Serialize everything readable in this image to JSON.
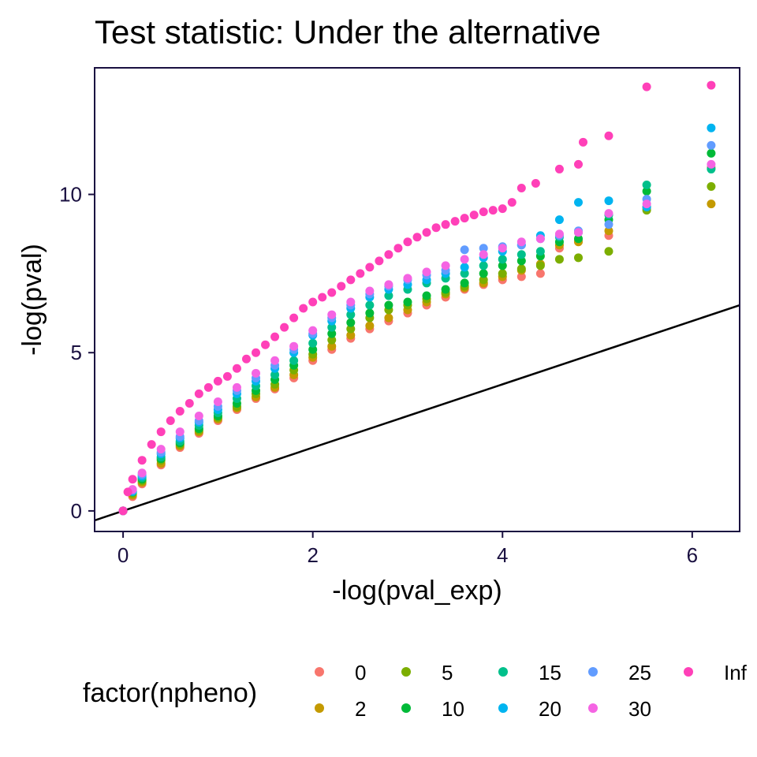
{
  "chart_data": {
    "type": "scatter",
    "title": "Test statistic: Under the alternative",
    "xlabel": "-log(pval_exp)",
    "ylabel": "-log(pval)",
    "xlim": [
      -0.3,
      6.5
    ],
    "ylim": [
      -0.65,
      14.0
    ],
    "xticks": [
      0,
      2,
      4,
      6
    ],
    "yticks": [
      0,
      5,
      10
    ],
    "grid": false,
    "legend": {
      "title": "factor(npheno)",
      "position": "bottom"
    },
    "reference_line": {
      "type": "identity",
      "slope": 1,
      "intercept": 0
    },
    "series": [
      {
        "name": "0",
        "color": "#F8766D",
        "points": [
          [
            0,
            0
          ],
          [
            0.1,
            0.45
          ],
          [
            0.2,
            0.85
          ],
          [
            0.4,
            1.45
          ],
          [
            0.6,
            2.0
          ],
          [
            0.8,
            2.45
          ],
          [
            1.0,
            2.85
          ],
          [
            1.2,
            3.2
          ],
          [
            1.4,
            3.55
          ],
          [
            1.6,
            3.85
          ],
          [
            1.8,
            4.2
          ],
          [
            2.0,
            4.75
          ],
          [
            2.2,
            5.1
          ],
          [
            2.4,
            5.45
          ],
          [
            2.6,
            5.75
          ],
          [
            2.8,
            6.0
          ],
          [
            3.0,
            6.25
          ],
          [
            3.2,
            6.5
          ],
          [
            3.4,
            6.75
          ],
          [
            3.6,
            7.0
          ],
          [
            3.8,
            7.15
          ],
          [
            4.0,
            7.3
          ],
          [
            4.2,
            7.4
          ],
          [
            4.4,
            7.5
          ],
          [
            4.6,
            8.3
          ],
          [
            4.8,
            8.55
          ],
          [
            5.12,
            8.7
          ],
          [
            5.52,
            9.55
          ],
          [
            6.2,
            10.85
          ]
        ]
      },
      {
        "name": "2",
        "color": "#C49A00",
        "points": [
          [
            0,
            0
          ],
          [
            0.1,
            0.5
          ],
          [
            0.2,
            0.9
          ],
          [
            0.4,
            1.5
          ],
          [
            0.6,
            2.05
          ],
          [
            0.8,
            2.5
          ],
          [
            1.0,
            2.9
          ],
          [
            1.2,
            3.25
          ],
          [
            1.4,
            3.6
          ],
          [
            1.6,
            3.9
          ],
          [
            1.8,
            4.3
          ],
          [
            2.0,
            4.85
          ],
          [
            2.2,
            5.2
          ],
          [
            2.4,
            5.55
          ],
          [
            2.6,
            5.85
          ],
          [
            2.8,
            6.1
          ],
          [
            3.0,
            6.35
          ],
          [
            3.2,
            6.6
          ],
          [
            3.4,
            6.85
          ],
          [
            3.6,
            7.05
          ],
          [
            3.8,
            7.2
          ],
          [
            4.0,
            7.4
          ],
          [
            4.2,
            7.6
          ],
          [
            4.4,
            7.8
          ],
          [
            4.6,
            8.4
          ],
          [
            4.8,
            8.5
          ],
          [
            5.12,
            8.85
          ],
          [
            5.52,
            9.6
          ],
          [
            6.2,
            9.7
          ]
        ]
      },
      {
        "name": "5",
        "color": "#7CAE00",
        "points": [
          [
            0,
            0
          ],
          [
            0.1,
            0.55
          ],
          [
            0.2,
            0.95
          ],
          [
            0.4,
            1.6
          ],
          [
            0.6,
            2.1
          ],
          [
            0.8,
            2.55
          ],
          [
            1.0,
            2.95
          ],
          [
            1.2,
            3.3
          ],
          [
            1.4,
            3.7
          ],
          [
            1.6,
            4.0
          ],
          [
            1.8,
            4.45
          ],
          [
            2.0,
            4.95
          ],
          [
            2.2,
            5.4
          ],
          [
            2.4,
            5.75
          ],
          [
            2.6,
            6.1
          ],
          [
            2.8,
            6.35
          ],
          [
            3.0,
            6.5
          ],
          [
            3.2,
            6.7
          ],
          [
            3.4,
            6.9
          ],
          [
            3.6,
            7.1
          ],
          [
            3.8,
            7.3
          ],
          [
            4.0,
            7.5
          ],
          [
            4.2,
            7.65
          ],
          [
            4.4,
            7.75
          ],
          [
            4.6,
            7.95
          ],
          [
            4.8,
            8.0
          ],
          [
            5.12,
            8.2
          ],
          [
            5.52,
            9.5
          ],
          [
            6.2,
            10.25
          ]
        ]
      },
      {
        "name": "10",
        "color": "#00BA38",
        "points": [
          [
            0,
            0
          ],
          [
            0.1,
            0.6
          ],
          [
            0.2,
            1.0
          ],
          [
            0.4,
            1.65
          ],
          [
            0.6,
            2.15
          ],
          [
            0.8,
            2.6
          ],
          [
            1.0,
            3.0
          ],
          [
            1.2,
            3.4
          ],
          [
            1.4,
            3.8
          ],
          [
            1.6,
            4.15
          ],
          [
            1.8,
            4.6
          ],
          [
            2.0,
            5.1
          ],
          [
            2.2,
            5.6
          ],
          [
            2.4,
            5.95
          ],
          [
            2.6,
            6.25
          ],
          [
            2.8,
            6.5
          ],
          [
            3.0,
            6.6
          ],
          [
            3.2,
            6.8
          ],
          [
            3.4,
            7.0
          ],
          [
            3.6,
            7.2
          ],
          [
            3.8,
            7.5
          ],
          [
            4.0,
            7.75
          ],
          [
            4.2,
            7.9
          ],
          [
            4.4,
            8.05
          ],
          [
            4.6,
            8.5
          ],
          [
            4.8,
            8.6
          ],
          [
            5.12,
            9.2
          ],
          [
            5.52,
            10.1
          ],
          [
            6.2,
            11.3
          ]
        ]
      },
      {
        "name": "15",
        "color": "#00C08B",
        "points": [
          [
            0,
            0
          ],
          [
            0.1,
            0.6
          ],
          [
            0.2,
            1.05
          ],
          [
            0.4,
            1.7
          ],
          [
            0.6,
            2.2
          ],
          [
            0.8,
            2.7
          ],
          [
            1.0,
            3.1
          ],
          [
            1.2,
            3.55
          ],
          [
            1.4,
            3.95
          ],
          [
            1.6,
            4.3
          ],
          [
            1.8,
            4.75
          ],
          [
            2.0,
            5.3
          ],
          [
            2.2,
            5.8
          ],
          [
            2.4,
            6.2
          ],
          [
            2.6,
            6.5
          ],
          [
            2.8,
            6.8
          ],
          [
            3.0,
            7.0
          ],
          [
            3.2,
            7.2
          ],
          [
            3.4,
            7.35
          ],
          [
            3.6,
            7.5
          ],
          [
            3.8,
            7.75
          ],
          [
            4.0,
            7.95
          ],
          [
            4.2,
            8.1
          ],
          [
            4.4,
            8.2
          ],
          [
            4.6,
            8.65
          ],
          [
            4.8,
            8.8
          ],
          [
            5.12,
            9.35
          ],
          [
            5.52,
            10.3
          ],
          [
            6.2,
            10.8
          ]
        ]
      },
      {
        "name": "20",
        "color": "#00B4F0",
        "points": [
          [
            0,
            0
          ],
          [
            0.1,
            0.62
          ],
          [
            0.2,
            1.1
          ],
          [
            0.4,
            1.8
          ],
          [
            0.6,
            2.3
          ],
          [
            0.8,
            2.8
          ],
          [
            1.0,
            3.2
          ],
          [
            1.2,
            3.7
          ],
          [
            1.4,
            4.1
          ],
          [
            1.6,
            4.5
          ],
          [
            1.8,
            5.0
          ],
          [
            2.0,
            5.55
          ],
          [
            2.2,
            6.0
          ],
          [
            2.4,
            6.4
          ],
          [
            2.6,
            6.75
          ],
          [
            2.8,
            7.0
          ],
          [
            3.0,
            7.15
          ],
          [
            3.2,
            7.3
          ],
          [
            3.4,
            7.5
          ],
          [
            3.6,
            7.7
          ],
          [
            3.8,
            8.0
          ],
          [
            4.0,
            8.2
          ],
          [
            4.2,
            8.4
          ],
          [
            4.4,
            8.7
          ],
          [
            4.6,
            9.2
          ],
          [
            4.8,
            9.75
          ],
          [
            5.12,
            9.8
          ],
          [
            5.52,
            9.6
          ],
          [
            6.2,
            12.1
          ]
        ]
      },
      {
        "name": "25",
        "color": "#619CFF",
        "points": [
          [
            0,
            0
          ],
          [
            0.1,
            0.65
          ],
          [
            0.2,
            1.15
          ],
          [
            0.4,
            1.85
          ],
          [
            0.6,
            2.35
          ],
          [
            0.8,
            2.85
          ],
          [
            1.0,
            3.3
          ],
          [
            1.2,
            3.8
          ],
          [
            1.4,
            4.2
          ],
          [
            1.6,
            4.6
          ],
          [
            1.8,
            5.1
          ],
          [
            2.0,
            5.6
          ],
          [
            2.2,
            6.1
          ],
          [
            2.4,
            6.5
          ],
          [
            2.6,
            6.85
          ],
          [
            2.8,
            7.1
          ],
          [
            3.0,
            7.3
          ],
          [
            3.2,
            7.45
          ],
          [
            3.4,
            7.6
          ],
          [
            3.6,
            8.25
          ],
          [
            3.8,
            8.3
          ],
          [
            4.0,
            8.35
          ],
          [
            4.2,
            8.4
          ],
          [
            4.4,
            8.6
          ],
          [
            4.6,
            8.7
          ],
          [
            4.8,
            8.85
          ],
          [
            5.12,
            9.05
          ],
          [
            5.52,
            9.85
          ],
          [
            6.2,
            11.55
          ]
        ]
      },
      {
        "name": "30",
        "color": "#F564E3",
        "points": [
          [
            0,
            0
          ],
          [
            0.1,
            0.68
          ],
          [
            0.2,
            1.2
          ],
          [
            0.4,
            1.95
          ],
          [
            0.6,
            2.5
          ],
          [
            0.8,
            3.0
          ],
          [
            1.0,
            3.45
          ],
          [
            1.2,
            3.9
          ],
          [
            1.4,
            4.35
          ],
          [
            1.6,
            4.75
          ],
          [
            1.8,
            5.2
          ],
          [
            2.0,
            5.7
          ],
          [
            2.2,
            6.2
          ],
          [
            2.4,
            6.6
          ],
          [
            2.6,
            6.95
          ],
          [
            2.8,
            7.15
          ],
          [
            3.0,
            7.35
          ],
          [
            3.2,
            7.55
          ],
          [
            3.4,
            7.75
          ],
          [
            3.6,
            7.95
          ],
          [
            3.8,
            8.1
          ],
          [
            4.0,
            8.3
          ],
          [
            4.2,
            8.5
          ],
          [
            4.4,
            8.6
          ],
          [
            4.6,
            8.75
          ],
          [
            4.8,
            8.8
          ],
          [
            5.12,
            9.4
          ],
          [
            5.52,
            9.7
          ],
          [
            6.2,
            10.95
          ]
        ]
      },
      {
        "name": "Inf",
        "color": "#FF40B8",
        "points": [
          [
            0,
            0
          ],
          [
            0.05,
            0.6
          ],
          [
            0.1,
            1.0
          ],
          [
            0.2,
            1.6
          ],
          [
            0.3,
            2.1
          ],
          [
            0.4,
            2.5
          ],
          [
            0.5,
            2.85
          ],
          [
            0.6,
            3.15
          ],
          [
            0.7,
            3.4
          ],
          [
            0.8,
            3.7
          ],
          [
            0.9,
            3.9
          ],
          [
            1.0,
            4.1
          ],
          [
            1.1,
            4.25
          ],
          [
            1.2,
            4.5
          ],
          [
            1.3,
            4.8
          ],
          [
            1.4,
            5.0
          ],
          [
            1.5,
            5.25
          ],
          [
            1.6,
            5.5
          ],
          [
            1.7,
            5.8
          ],
          [
            1.8,
            6.1
          ],
          [
            1.9,
            6.4
          ],
          [
            2.0,
            6.6
          ],
          [
            2.1,
            6.75
          ],
          [
            2.2,
            6.9
          ],
          [
            2.3,
            7.1
          ],
          [
            2.4,
            7.3
          ],
          [
            2.5,
            7.5
          ],
          [
            2.6,
            7.7
          ],
          [
            2.7,
            7.9
          ],
          [
            2.8,
            8.1
          ],
          [
            2.9,
            8.3
          ],
          [
            3.0,
            8.5
          ],
          [
            3.1,
            8.65
          ],
          [
            3.2,
            8.8
          ],
          [
            3.3,
            8.95
          ],
          [
            3.4,
            9.05
          ],
          [
            3.5,
            9.15
          ],
          [
            3.6,
            9.25
          ],
          [
            3.7,
            9.35
          ],
          [
            3.8,
            9.45
          ],
          [
            3.9,
            9.5
          ],
          [
            4.0,
            9.55
          ],
          [
            4.1,
            9.75
          ],
          [
            4.2,
            10.2
          ],
          [
            4.35,
            10.35
          ],
          [
            4.6,
            10.8
          ],
          [
            4.8,
            10.95
          ],
          [
            4.85,
            11.65
          ],
          [
            5.12,
            11.85
          ],
          [
            5.52,
            13.4
          ],
          [
            6.2,
            13.45
          ]
        ]
      }
    ]
  }
}
